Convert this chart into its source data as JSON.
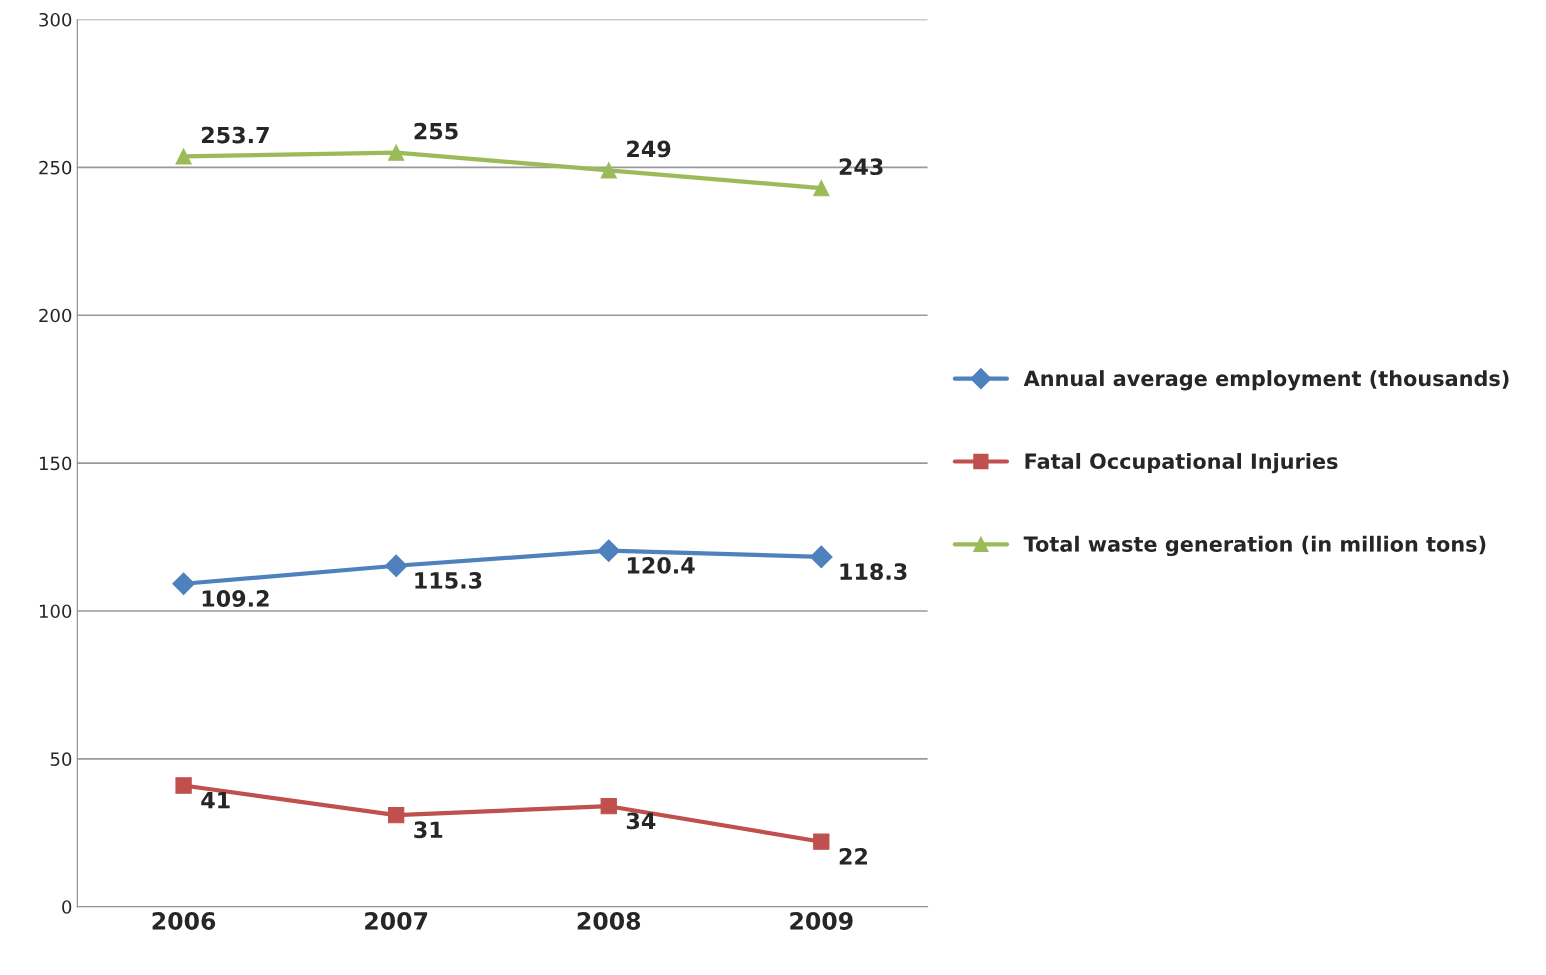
{
  "chart_data": {
    "type": "line",
    "categories": [
      "2006",
      "2007",
      "2008",
      "2009"
    ],
    "series": [
      {
        "name": "Annual average employment (thousands)",
        "color": "#4f81bd",
        "marker": "diamond",
        "values": [
          109.2,
          115.3,
          120.4,
          118.3
        ]
      },
      {
        "name": "Fatal Occupational Injuries",
        "color": "#c0504d",
        "marker": "square",
        "values": [
          41,
          31,
          34,
          22
        ]
      },
      {
        "name": "Total waste generation (in million tons)",
        "color": "#9bbb59",
        "marker": "triangle",
        "values": [
          253.7,
          255,
          249,
          243
        ]
      }
    ],
    "ylim": [
      0,
      300
    ],
    "yticks": [
      0,
      50,
      100,
      150,
      200,
      250,
      300
    ],
    "grid": "y",
    "legend": "right",
    "data_labels": true,
    "line_style": "solid"
  }
}
